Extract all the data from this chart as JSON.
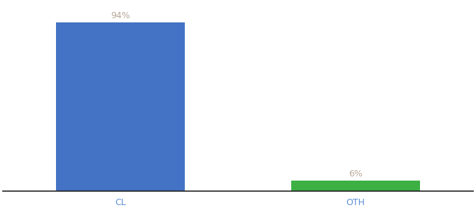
{
  "categories": [
    "CL",
    "OTH"
  ],
  "values": [
    94,
    6
  ],
  "bar_colors": [
    "#4472c4",
    "#3cb043"
  ],
  "value_labels": [
    "94%",
    "6%"
  ],
  "ylim": [
    0,
    105
  ],
  "background_color": "#ffffff",
  "label_color": "#b8a898",
  "label_fontsize": 9,
  "tick_fontsize": 9,
  "tick_color": "#5b8ed6",
  "bar_width": 0.55,
  "xlim": [
    -0.5,
    1.5
  ]
}
